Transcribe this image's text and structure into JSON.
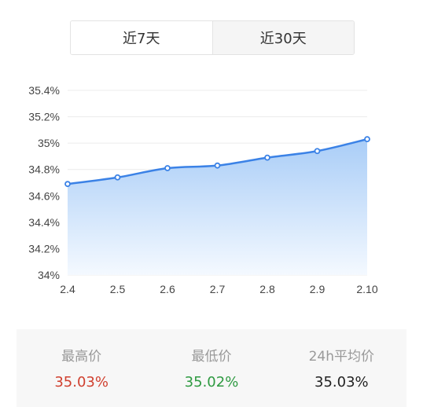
{
  "tabs": [
    {
      "label": "近7天",
      "active": true
    },
    {
      "label": "近30天",
      "active": false
    }
  ],
  "chart_data": {
    "type": "area",
    "x": [
      "2.4",
      "2.5",
      "2.6",
      "2.7",
      "2.8",
      "2.9",
      "2.10"
    ],
    "values": [
      34.69,
      34.74,
      34.81,
      34.83,
      34.89,
      34.94,
      35.03
    ],
    "ylim": [
      34,
      35.4
    ],
    "yticks": [
      34,
      34.2,
      34.4,
      34.6,
      34.8,
      35,
      35.2,
      35.4
    ],
    "ytick_labels": [
      "34%",
      "34.2%",
      "34.4%",
      "34.6%",
      "34.8%",
      "35%",
      "35.2%",
      "35.4%"
    ],
    "grid": true,
    "colors": {
      "line": "#3b82e6",
      "fill_top": "#a9cdf7",
      "fill_bottom": "#f4f9ff",
      "grid": "#ececec"
    }
  },
  "stats": {
    "high": {
      "label": "最高价",
      "value": "35.03%",
      "color": "#d0402f"
    },
    "low": {
      "label": "最低价",
      "value": "35.02%",
      "color": "#2e9a41"
    },
    "avg": {
      "label": "24h平均价",
      "value": "35.03%",
      "color": "#222222"
    }
  }
}
